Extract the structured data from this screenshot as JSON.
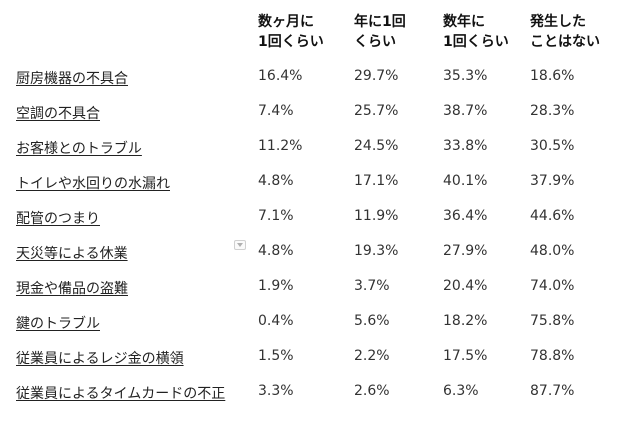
{
  "chart_data": {
    "type": "table",
    "columns": [
      "数ヶ月に\n1回くらい",
      "年に1回\nくらい",
      "数年に\n1回くらい",
      "発生した\nことはない"
    ],
    "rows": [
      {
        "label": "厨房機器の不具合",
        "values": [
          "16.4%",
          "29.7%",
          "35.3%",
          "18.6%"
        ]
      },
      {
        "label": "空調の不具合",
        "values": [
          "7.4%",
          "25.7%",
          "38.7%",
          "28.3%"
        ]
      },
      {
        "label": "お客様とのトラブル",
        "values": [
          "11.2%",
          "24.5%",
          "33.8%",
          "30.5%"
        ]
      },
      {
        "label": "トイレや水回りの水漏れ",
        "values": [
          "4.8%",
          "17.1%",
          "40.1%",
          "37.9%"
        ]
      },
      {
        "label": "配管のつまり",
        "values": [
          "7.1%",
          "11.9%",
          "36.4%",
          "44.6%"
        ]
      },
      {
        "label": "天災等による休業",
        "values": [
          "4.8%",
          "19.3%",
          "27.9%",
          "48.0%"
        ]
      },
      {
        "label": "現金や備品の盗難",
        "values": [
          "1.9%",
          "3.7%",
          "20.4%",
          "74.0%"
        ]
      },
      {
        "label": "鍵のトラブル",
        "values": [
          "0.4%",
          "5.6%",
          "18.2%",
          "75.8%"
        ]
      },
      {
        "label": "従業員によるレジ金の横領",
        "values": [
          "1.5%",
          "2.2%",
          "17.5%",
          "78.8%"
        ]
      },
      {
        "label": "従業員によるタイムカードの不正",
        "values": [
          "3.3%",
          "2.6%",
          "6.3%",
          "87.7%"
        ]
      }
    ]
  },
  "icons": {
    "filter": "dropdown-filter-icon"
  }
}
